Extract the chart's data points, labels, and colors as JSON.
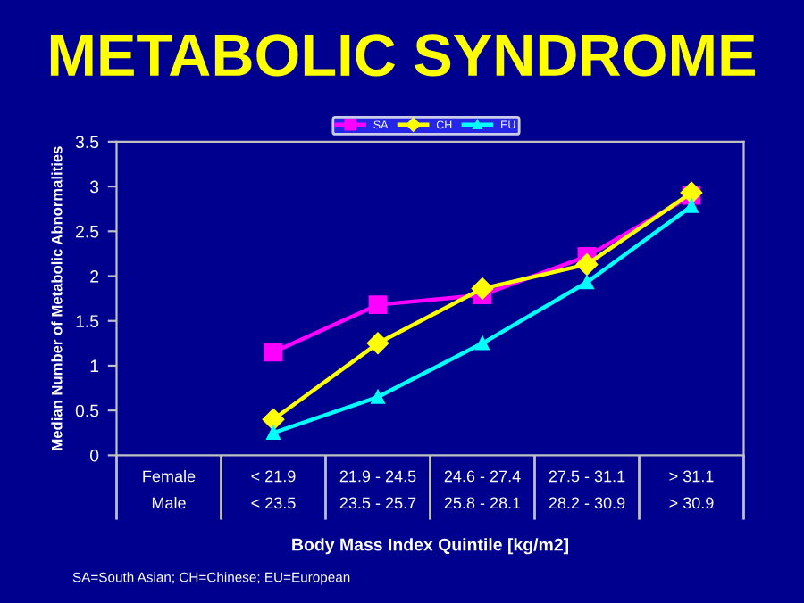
{
  "chart_data": {
    "type": "line",
    "title": "METABOLIC SYNDROME",
    "xlabel": "Body Mass Index Quintile [kg/m2]",
    "ylabel": "Median Number of Metabolic Abnormalities",
    "categories": [
      "Female\nMale",
      "< 21.9\n< 23.5",
      "21.9 - 24.5\n23.5 - 25.7",
      "24.6 - 27.4\n25.8 - 28.1",
      "27.5 - 31.1\n28.2 - 30.9",
      "> 31.1\n> 30.9"
    ],
    "series": [
      {
        "name": "SA",
        "color": "#ff00ff",
        "marker": "square",
        "values": [
          null,
          1.15,
          1.68,
          1.79,
          2.22,
          2.9
        ]
      },
      {
        "name": "CH",
        "color": "#ffff00",
        "marker": "diamond",
        "values": [
          null,
          0.4,
          1.25,
          1.86,
          2.13,
          2.93
        ]
      },
      {
        "name": "EU",
        "color": "#00ffff",
        "marker": "triangle",
        "values": [
          null,
          0.25,
          0.65,
          1.25,
          1.93,
          2.78
        ]
      }
    ],
    "ylim": [
      0,
      3.5
    ],
    "yticks": [
      0,
      0.5,
      1,
      1.5,
      2,
      2.5,
      3,
      3.5
    ],
    "grid": false,
    "legend": "top",
    "annotations": [
      "SA=South Asian; CH=Chinese; EU=European"
    ]
  }
}
